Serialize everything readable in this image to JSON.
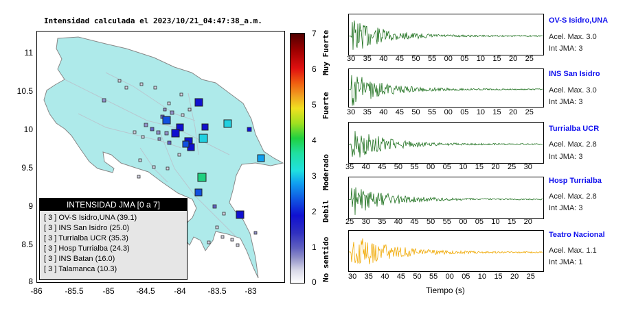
{
  "map": {
    "title": "Intensidad calculada el 2023/10/21_04:47:38_a.m.",
    "y_ticks": [
      "11",
      "10.5",
      "10",
      "9.5",
      "9",
      "8.5",
      "8"
    ],
    "x_ticks": [
      "-86",
      "-85.5",
      "-85",
      "-84.5",
      "-84",
      "-83.5",
      "-83"
    ],
    "legend_title": "INTENSIDAD JMA [0 a 7]",
    "legend_items": [
      "[ 3 ] OV-S Isidro,UNA (39.1)",
      "[ 3 ] INS San Isidro (25.0)",
      "[ 3 ] Turrialba UCR (35.3)",
      "[ 3 ] Hosp Turrialba (24.3)",
      "[ 3 ] INS Batan (16.0)",
      "[ 3 ] Talamanca (10.3)"
    ]
  },
  "colorbar": {
    "ticks": [
      "7",
      "6",
      "5",
      "4",
      "3",
      "2",
      "1",
      "0"
    ],
    "labels": [
      "Muy Fuerte",
      "Fuerte",
      "Moderado",
      "Debil",
      "No sentido"
    ]
  },
  "stations": [
    {
      "name": "OV-S Isidro,UNA",
      "accel": "Acel. Max. 3.0",
      "jma": "Int JMA: 3",
      "color": "#1a6e1a",
      "ticks": [
        "30",
        "35",
        "40",
        "45",
        "50",
        "55",
        "00",
        "05",
        "10",
        "15",
        "20",
        "25"
      ]
    },
    {
      "name": "INS San Isidro",
      "accel": "Acel. Max. 3.0",
      "jma": "Int JMA: 3",
      "color": "#1a6e1a",
      "ticks": [
        "30",
        "35",
        "40",
        "45",
        "50",
        "55",
        "00",
        "05",
        "10",
        "15",
        "20",
        "25"
      ]
    },
    {
      "name": "Turrialba UCR",
      "accel": "Acel. Max. 2.8",
      "jma": "Int JMA: 3",
      "color": "#1a6e1a",
      "ticks": [
        "35",
        "40",
        "45",
        "50",
        "55",
        "00",
        "05",
        "10",
        "15",
        "20",
        "25",
        "30"
      ]
    },
    {
      "name": "Hosp Turrialba",
      "accel": "Acel. Max. 2.8",
      "jma": "Int JMA: 3",
      "color": "#1a6e1a",
      "ticks": [
        "25",
        "30",
        "35",
        "40",
        "45",
        "50",
        "55",
        "00",
        "05",
        "10",
        "15",
        "20"
      ]
    },
    {
      "name": "Teatro Nacional",
      "accel": "Acel. Max. 1.1",
      "jma": "Int JMA: 1",
      "color": "#f0a800",
      "ticks": [
        "30",
        "35",
        "40",
        "45",
        "50",
        "55",
        "00",
        "05",
        "10",
        "15",
        "20",
        "25"
      ]
    }
  ],
  "x_axis_title": "Tiempo (s)"
}
